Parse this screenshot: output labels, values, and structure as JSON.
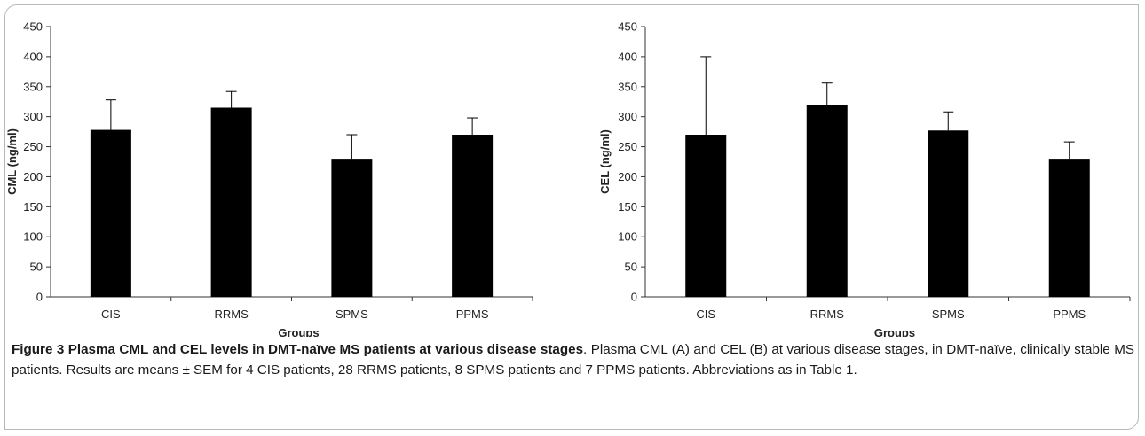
{
  "figure": {
    "caption_title": "Figure 3 Plasma CML and CEL levels in DMT-naïve MS patients at various disease stages",
    "caption_body": ". Plasma CML (A) and CEL (B) at various disease stages, in DMT-naïve, clinically stable MS patients. Results are means ± SEM for 4 CIS patients, 28 RRMS patients, 8 SPMS patients and 7 PPMS patients. Abbreviations as in Table 1."
  },
  "chart_data": [
    {
      "type": "bar",
      "categories": [
        "CIS",
        "RRMS",
        "SPMS",
        "PPMS"
      ],
      "values": [
        278,
        315,
        230,
        270
      ],
      "error_upper": [
        50,
        27,
        40,
        28
      ],
      "ylabel": "CML (ng/ml)",
      "xlabel": "Groups",
      "ylim": [
        0,
        450
      ],
      "yticks": [
        0,
        50,
        100,
        150,
        200,
        250,
        300,
        350,
        400,
        450
      ],
      "grid": false,
      "bar_color": "#000000"
    },
    {
      "type": "bar",
      "categories": [
        "CIS",
        "RRMS",
        "SPMS",
        "PPMS"
      ],
      "values": [
        270,
        320,
        277,
        230
      ],
      "error_upper": [
        130,
        36,
        31,
        28
      ],
      "ylabel": "CEL (ng/ml)",
      "xlabel": "Groups",
      "ylim": [
        0,
        450
      ],
      "yticks": [
        0,
        50,
        100,
        150,
        200,
        250,
        300,
        350,
        400,
        450
      ],
      "grid": false,
      "bar_color": "#000000"
    }
  ]
}
